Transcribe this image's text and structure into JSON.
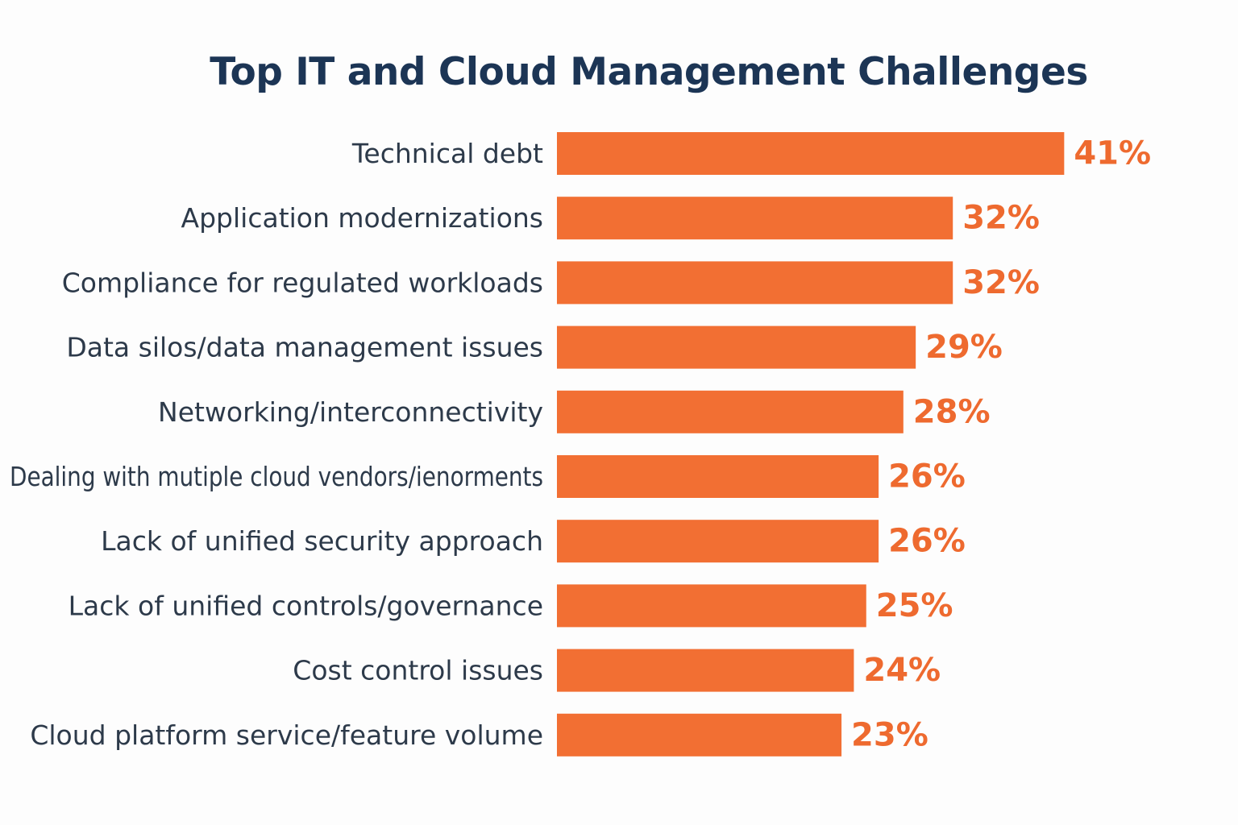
{
  "chart_data": {
    "type": "bar",
    "orientation": "horizontal",
    "title": "Top IT and Cloud Management Challenges",
    "categories": [
      "Technical debt",
      "Application modernizations",
      "Compliance for regulated workloads",
      "Data silos/data management issues",
      "Networking/interconnectivity",
      "Dealing with mutiple cloud vendors/ienorments",
      "Lack of unified security approach",
      "Lack of unified controls/governance",
      "Cost control issues",
      "Cloud platform service/feature volume"
    ],
    "values": [
      41,
      32,
      32,
      29,
      28,
      26,
      26,
      25,
      24,
      23
    ],
    "value_labels": [
      "41%",
      "32%",
      "32%",
      "29%",
      "28%",
      "26%",
      "26%",
      "25%",
      "24%",
      "23%"
    ],
    "unit": "%",
    "grid": false,
    "legend": "none",
    "colors": {
      "bar": "#f26f33",
      "value_label": "#ee6a2f",
      "title": "#1c3555",
      "category_label": "#2d3a4a"
    }
  }
}
